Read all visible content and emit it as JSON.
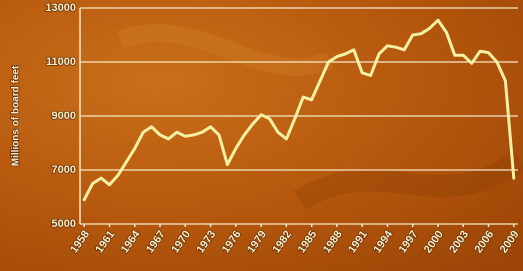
{
  "chart_data": {
    "type": "line",
    "y_label": "Millions of board feet",
    "x": [
      1958,
      1959,
      1960,
      1961,
      1962,
      1963,
      1964,
      1965,
      1966,
      1967,
      1968,
      1969,
      1970,
      1971,
      1972,
      1973,
      1974,
      1975,
      1976,
      1977,
      1978,
      1979,
      1980,
      1981,
      1982,
      1983,
      1984,
      1985,
      1986,
      1987,
      1988,
      1989,
      1990,
      1991,
      1992,
      1993,
      1994,
      1995,
      1996,
      1997,
      1998,
      1999,
      2000,
      2001,
      2002,
      2003,
      2004,
      2005,
      2006,
      2007,
      2008,
      2009
    ],
    "values": [
      5900,
      6500,
      6700,
      6450,
      6800,
      7300,
      7800,
      8400,
      8600,
      8300,
      8150,
      8400,
      8250,
      8300,
      8400,
      8600,
      8300,
      7200,
      7800,
      8300,
      8700,
      9050,
      8900,
      8400,
      8150,
      8900,
      9700,
      9600,
      10300,
      11000,
      11200,
      11300,
      11450,
      10600,
      10500,
      11300,
      11600,
      11550,
      11450,
      12000,
      12050,
      12250,
      12550,
      12100,
      11250,
      11250,
      10950,
      11400,
      11350,
      11000,
      10300,
      6700
    ],
    "color": "#f7f0a2",
    "xlim": [
      1957.5,
      2009.5
    ],
    "xticks": [
      1958,
      1961,
      1964,
      1967,
      1970,
      1973,
      1976,
      1979,
      1982,
      1985,
      1988,
      1991,
      1994,
      1997,
      2000,
      2003,
      2006,
      2009
    ],
    "ylim": [
      5000,
      13000
    ],
    "yticks": [
      5000,
      7000,
      9000,
      11000,
      13000
    ],
    "grid": true
  }
}
